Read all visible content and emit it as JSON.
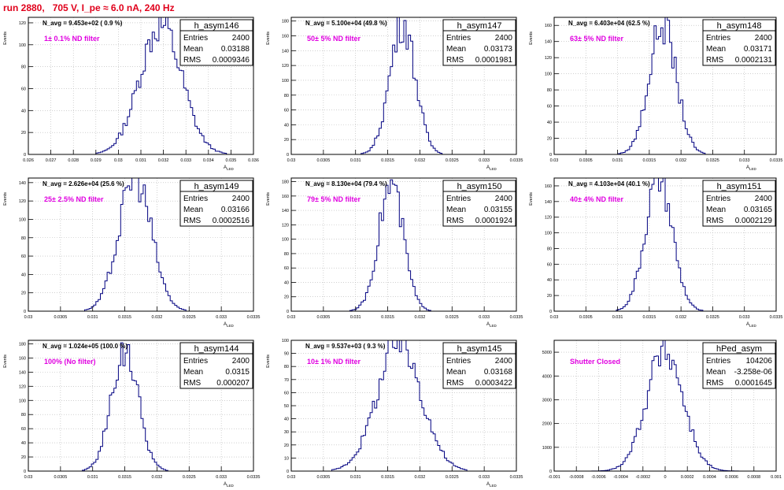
{
  "title": "run 2880,   705 V, I_pe ≈ 6.0 nA, 240 Hz",
  "colors": {
    "title": "#e0001b",
    "annotation": "#e000e0",
    "histogram_line": "#000080",
    "grid": "#b4b4b4",
    "frame": "#000000"
  },
  "chart_data": [
    {
      "type": "histogram",
      "name": "h_asym146",
      "naverage": "N_avg = 9.453e+02 ( 0.9 %)",
      "annotation": "1± 0.1% ND filter",
      "stats": {
        "entries_label": "Entries",
        "entries": "2400",
        "mean_label": "Mean",
        "mean": "0.03188",
        "rms_label": "RMS",
        "rms": "0.0009346"
      },
      "ylabel": "Events",
      "xlabel": "A_LED",
      "xlim": [
        0.026,
        0.036
      ],
      "ylim": [
        0,
        125
      ],
      "xticks": [
        "0.026",
        "0.027",
        "0.028",
        "0.029",
        "0.03",
        "0.031",
        "0.032",
        "0.033",
        "0.034",
        "0.035",
        "0.036"
      ],
      "yticks": [
        "0",
        "20",
        "40",
        "60",
        "80",
        "100",
        "120"
      ],
      "grid": true,
      "peak": 118,
      "mean_value": 0.03188,
      "sigma": 0.00093
    },
    {
      "type": "histogram",
      "name": "h_asym147",
      "naverage": "N_avg = 5.100e+04 (49.8 %)",
      "annotation": "50± 5% ND filter",
      "stats": {
        "entries_label": "Entries",
        "entries": "2400",
        "mean_label": "Mean",
        "mean": "0.03173",
        "rms_label": "RMS",
        "rms": "0.0001981"
      },
      "ylabel": "Events",
      "xlabel": "A_LED",
      "xlim": [
        0.03,
        0.0335
      ],
      "ylim": [
        0,
        185
      ],
      "xticks": [
        "0.03",
        "0.0305",
        "0.031",
        "0.0315",
        "0.032",
        "0.0325",
        "0.033",
        "0.0335"
      ],
      "yticks": [
        "0",
        "20",
        "40",
        "60",
        "80",
        "100",
        "120",
        "140",
        "160",
        "180"
      ],
      "grid": true,
      "peak": 178,
      "mean_value": 0.03173,
      "sigma": 0.000198
    },
    {
      "type": "histogram",
      "name": "h_asym148",
      "naverage": "N_avg = 6.403e+04 (62.5 %)",
      "annotation": "63± 5% ND filter",
      "stats": {
        "entries_label": "Entries",
        "entries": "2400",
        "mean_label": "Mean",
        "mean": "0.03171",
        "rms_label": "RMS",
        "rms": "0.0002131"
      },
      "ylabel": "Events",
      "xlabel": "A_LED",
      "xlim": [
        0.03,
        0.0335
      ],
      "ylim": [
        0,
        170
      ],
      "xticks": [
        "0.03",
        "0.0305",
        "0.031",
        "0.0315",
        "0.032",
        "0.0325",
        "0.033",
        "0.0335"
      ],
      "yticks": [
        "0",
        "20",
        "40",
        "60",
        "80",
        "100",
        "120",
        "140",
        "160"
      ],
      "grid": true,
      "peak": 162,
      "mean_value": 0.03171,
      "sigma": 0.000213
    },
    {
      "type": "histogram",
      "name": "h_asym149",
      "naverage": "N_avg = 2.626e+04 (25.6 %)",
      "annotation": "25± 2.5% ND filter",
      "stats": {
        "entries_label": "Entries",
        "entries": "2400",
        "mean_label": "Mean",
        "mean": "0.03166",
        "rms_label": "RMS",
        "rms": "0.0002516"
      },
      "ylabel": "Events",
      "xlabel": "A_LED",
      "xlim": [
        0.03,
        0.0335
      ],
      "ylim": [
        0,
        145
      ],
      "xticks": [
        "0.03",
        "0.0305",
        "0.031",
        "0.0315",
        "0.032",
        "0.0325",
        "0.033",
        "0.0335"
      ],
      "yticks": [
        "0",
        "20",
        "40",
        "60",
        "80",
        "100",
        "120",
        "140"
      ],
      "grid": true,
      "peak": 146,
      "mean_value": 0.03166,
      "sigma": 0.000252
    },
    {
      "type": "histogram",
      "name": "h_asym150",
      "naverage": "N_avg = 8.130e+04 (79.4 %)",
      "annotation": "79± 5% ND filter",
      "stats": {
        "entries_label": "Entries",
        "entries": "2400",
        "mean_label": "Mean",
        "mean": "0.03155",
        "rms_label": "RMS",
        "rms": "0.0001924"
      },
      "ylabel": "Events",
      "xlabel": "A_LED",
      "xlim": [
        0.03,
        0.0335
      ],
      "ylim": [
        0,
        185
      ],
      "xticks": [
        "0.03",
        "0.0305",
        "0.031",
        "0.0315",
        "0.032",
        "0.0325",
        "0.033",
        "0.0335"
      ],
      "yticks": [
        "0",
        "20",
        "40",
        "60",
        "80",
        "100",
        "120",
        "140",
        "160",
        "180"
      ],
      "grid": true,
      "peak": 176,
      "mean_value": 0.03155,
      "sigma": 0.000192
    },
    {
      "type": "histogram",
      "name": "h_asym151",
      "naverage": "N_avg = 4.103e+04 (40.1 %)",
      "annotation": "40± 4% ND filter",
      "stats": {
        "entries_label": "Entries",
        "entries": "2400",
        "mean_label": "Mean",
        "mean": "0.03165",
        "rms_label": "RMS",
        "rms": "0.0002129"
      },
      "ylabel": "Events",
      "xlabel": "A_LED",
      "xlim": [
        0.03,
        0.0335
      ],
      "ylim": [
        0,
        170
      ],
      "xticks": [
        "0.03",
        "0.0305",
        "0.031",
        "0.0315",
        "0.032",
        "0.0325",
        "0.033",
        "0.0335"
      ],
      "yticks": [
        "0",
        "20",
        "40",
        "60",
        "80",
        "100",
        "120",
        "140",
        "160"
      ],
      "grid": true,
      "peak": 168,
      "mean_value": 0.03165,
      "sigma": 0.000213
    },
    {
      "type": "histogram",
      "name": "h_asym144",
      "naverage": "N_avg = 1.024e+05 (100.0 %)",
      "annotation": "100% (No filter)",
      "stats": {
        "entries_label": "Entries",
        "entries": "2400",
        "mean_label": "Mean",
        "mean": "0.0315",
        "rms_label": "RMS",
        "rms": "0.000207"
      },
      "ylabel": "Events",
      "xlabel": "A_LED",
      "xlim": [
        0.03,
        0.0335
      ],
      "ylim": [
        0,
        185
      ],
      "xticks": [
        "0.03",
        "0.0305",
        "0.031",
        "0.0315",
        "0.032",
        "0.0325",
        "0.033",
        "0.0335"
      ],
      "yticks": [
        "0",
        "20",
        "40",
        "60",
        "80",
        "100",
        "120",
        "140",
        "160",
        "180"
      ],
      "grid": true,
      "peak": 172,
      "mean_value": 0.0315,
      "sigma": 0.000207
    },
    {
      "type": "histogram",
      "name": "h_asym145",
      "naverage": "N_avg = 9.537e+03 ( 9.3 %)",
      "annotation": "10± 1% ND filter",
      "stats": {
        "entries_label": "Entries",
        "entries": "2400",
        "mean_label": "Mean",
        "mean": "0.03168",
        "rms_label": "RMS",
        "rms": "0.0003422"
      },
      "ylabel": "Events",
      "xlabel": "A_LED",
      "xlim": [
        0.03,
        0.0335
      ],
      "ylim": [
        0,
        100
      ],
      "xticks": [
        "0.03",
        "0.0305",
        "0.031",
        "0.0315",
        "0.032",
        "0.0325",
        "0.033",
        "0.0335"
      ],
      "yticks": [
        "0",
        "10",
        "20",
        "30",
        "40",
        "50",
        "60",
        "70",
        "80",
        "90",
        "100"
      ],
      "grid": true,
      "peak": 98,
      "mean_value": 0.03168,
      "sigma": 0.000342
    },
    {
      "type": "histogram",
      "name": "hPed_asym",
      "naverage": "",
      "annotation": "Shutter Closed",
      "stats": {
        "entries_label": "Entries",
        "entries": "104206",
        "mean_label": "Mean",
        "mean": "-3.258e-06",
        "rms_label": "RMS",
        "rms": "0.0001645"
      },
      "ylabel": "",
      "xlabel": "",
      "xlim": [
        -0.001,
        0.001
      ],
      "ylim": [
        0,
        5500
      ],
      "xticks": [
        "-0.001",
        "-0.0008",
        "-0.0006",
        "-0.0004",
        "-0.0002",
        "0",
        "0.0002",
        "0.0004",
        "0.0006",
        "0.0008",
        "0.001"
      ],
      "yticks": [
        "0",
        "1000",
        "2000",
        "3000",
        "4000",
        "5000"
      ],
      "grid": true,
      "peak": 5100,
      "mean_value": -3.258e-06,
      "sigma": 0.0001645
    }
  ]
}
